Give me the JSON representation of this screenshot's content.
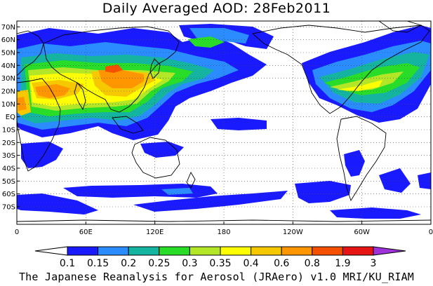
{
  "title": "Daily Averaged AOD: 28Feb2011",
  "caption": "The Japanese Reanalysis for Aerosol (JRAero) v1.0 MRI/KU_RIAM",
  "map": {
    "lat_labels": [
      "70N",
      "60N",
      "50N",
      "40N",
      "30N",
      "20N",
      "10N",
      "EQ",
      "10S",
      "20S",
      "30S",
      "40S",
      "50S",
      "60S",
      "70S"
    ],
    "lon_labels": [
      "0",
      "60E",
      "120E",
      "180",
      "120W",
      "60W",
      "0"
    ],
    "grid": "dotted"
  },
  "colorbar": {
    "levels": [
      "0.1",
      "0.15",
      "0.2",
      "0.25",
      "0.3",
      "0.35",
      "0.4",
      "0.6",
      "0.8",
      "1.9",
      "3"
    ],
    "colors": [
      "#ffffff",
      "#1a1aff",
      "#2a8cff",
      "#14b4a0",
      "#28dc28",
      "#b4e628",
      "#ffff00",
      "#f5c800",
      "#ff9600",
      "#f55000",
      "#e61414",
      "#a032dc"
    ]
  }
}
